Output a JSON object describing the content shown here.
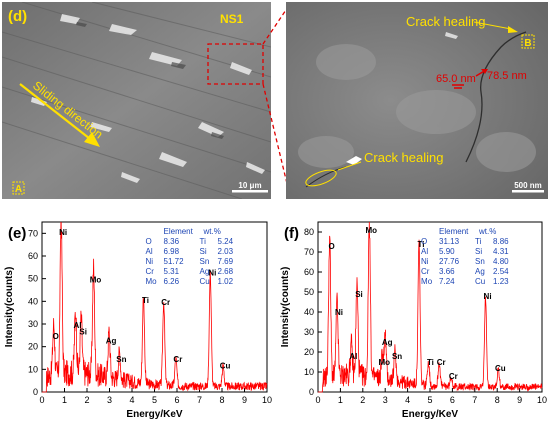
{
  "sem_left": {
    "panel_label": "(d)",
    "sample_label": "NS1",
    "arrow_label": "Sliding direction",
    "point_label": "A",
    "scale_bar": "10 μm"
  },
  "sem_right": {
    "crack_label_top": "Crack healing",
    "crack_label_bottom": "Crack healing",
    "point_label": "B",
    "measure_1": "65.0 nm",
    "measure_2": "78.5 nm",
    "scale_bar": "500 nm"
  },
  "colors": {
    "annotation_yellow": "#ffe000",
    "measure_red": "#e00000",
    "spectrum_red": "#ff0000",
    "table_blue": "#1e46b4"
  },
  "chart_data": [
    {
      "type": "line",
      "panel_label": "(e)",
      "xlabel": "Energy/KeV",
      "ylabel": "Intensity(counts)",
      "xlim": [
        0,
        10
      ],
      "ylim": [
        0,
        75
      ],
      "xticks": [
        0,
        1,
        2,
        3,
        4,
        5,
        6,
        7,
        8,
        9,
        10
      ],
      "yticks": [
        0,
        10,
        20,
        30,
        40,
        50,
        60,
        70
      ],
      "table_header": [
        "Element",
        "wt.%"
      ],
      "table": [
        [
          "O",
          "8.36",
          "Ti",
          "5.24"
        ],
        [
          "Al",
          "6.98",
          "Si",
          "2.03"
        ],
        [
          "Ni",
          "51.72",
          "Sn",
          "7.69"
        ],
        [
          "Cr",
          "5.31",
          "Ag",
          "2.68"
        ],
        [
          "Mo",
          "6.26",
          "Cu",
          "1.02"
        ]
      ],
      "peaks": [
        {
          "label": "O",
          "x": 0.52,
          "y": 22
        },
        {
          "label": "Ni",
          "x": 0.85,
          "y": 68
        },
        {
          "label": "Al",
          "x": 1.49,
          "y": 27
        },
        {
          "label": "Si",
          "x": 1.74,
          "y": 24
        },
        {
          "label": "Mo",
          "x": 2.29,
          "y": 47
        },
        {
          "label": "Ag",
          "x": 2.98,
          "y": 20
        },
        {
          "label": "Sn",
          "x": 3.44,
          "y": 12
        },
        {
          "label": "Ti",
          "x": 4.51,
          "y": 38
        },
        {
          "label": "Cr",
          "x": 5.41,
          "y": 37
        },
        {
          "label": "Cr",
          "x": 5.95,
          "y": 12
        },
        {
          "label": "Ni",
          "x": 7.48,
          "y": 50
        },
        {
          "label": "Cu",
          "x": 8.05,
          "y": 9
        }
      ]
    },
    {
      "type": "line",
      "panel_label": "(f)",
      "xlabel": "Energy/KeV",
      "ylabel": "Intensity(counts)",
      "xlim": [
        0,
        10
      ],
      "ylim": [
        0,
        85
      ],
      "xticks": [
        0,
        1,
        2,
        3,
        4,
        5,
        6,
        7,
        8,
        9,
        10
      ],
      "yticks": [
        0,
        10,
        20,
        30,
        40,
        50,
        60,
        70,
        80
      ],
      "table_header": [
        "Element",
        "wt.%"
      ],
      "table": [
        [
          "O",
          "31.13",
          "Ti",
          "8.86"
        ],
        [
          "Al",
          "5.90",
          "Si",
          "4.31"
        ],
        [
          "Ni",
          "27.76",
          "Sn",
          "4.80"
        ],
        [
          "Cr",
          "3.66",
          "Ag",
          "2.54"
        ],
        [
          "Mo",
          "7.24",
          "Cu",
          "1.23"
        ]
      ],
      "peaks": [
        {
          "label": "O",
          "x": 0.52,
          "y": 70
        },
        {
          "label": "Ni",
          "x": 0.85,
          "y": 37
        },
        {
          "label": "Al",
          "x": 1.49,
          "y": 15
        },
        {
          "label": "Si",
          "x": 1.74,
          "y": 46
        },
        {
          "label": "Mo",
          "x": 2.29,
          "y": 78
        },
        {
          "label": "Mo",
          "x": 2.87,
          "y": 12
        },
        {
          "label": "Ag",
          "x": 3.0,
          "y": 22
        },
        {
          "label": "Sn",
          "x": 3.44,
          "y": 15
        },
        {
          "label": "Ti",
          "x": 4.51,
          "y": 71
        },
        {
          "label": "Ti",
          "x": 4.93,
          "y": 12
        },
        {
          "label": "Cr",
          "x": 5.41,
          "y": 12
        },
        {
          "label": "Cr",
          "x": 5.95,
          "y": 5
        },
        {
          "label": "Ni",
          "x": 7.48,
          "y": 45
        },
        {
          "label": "Cu",
          "x": 8.05,
          "y": 9
        }
      ]
    }
  ]
}
